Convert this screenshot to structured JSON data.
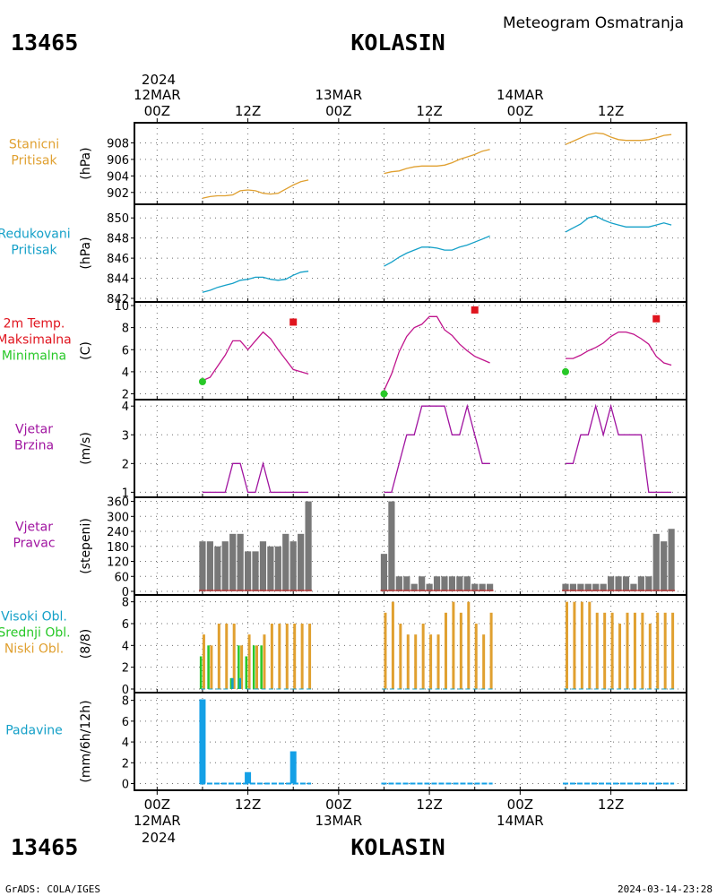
{
  "header": {
    "station_id": "13465",
    "station_name": "KOLASIN",
    "subtitle": "Meteogram Osmatranja"
  },
  "footer": {
    "left": "GrADS: COLA/IGES",
    "right": "2024-03-14-23:28"
  },
  "time_axis": {
    "top_year": "2024",
    "bottom_year": "2024",
    "labels": [
      {
        "h": 0,
        "text": "00Z",
        "date": "12MAR"
      },
      {
        "h": 12,
        "text": "12Z",
        "date": ""
      },
      {
        "h": 24,
        "text": "00Z",
        "date": "13MAR"
      },
      {
        "h": 36,
        "text": "12Z",
        "date": ""
      },
      {
        "h": 48,
        "text": "00Z",
        "date": "14MAR"
      },
      {
        "h": 60,
        "text": "12Z",
        "date": ""
      }
    ],
    "range_hours": [
      -3,
      70
    ]
  },
  "colors": {
    "orange": "#e0a030",
    "cyan": "#14a0c8",
    "magenta": "#c0148c",
    "red": "#e0141e",
    "green": "#28c828",
    "purple": "#a014a0",
    "gray": "#787878",
    "blue": "#14a0e6",
    "darkred": "#c83232"
  },
  "chart_data": [
    {
      "type": "line",
      "labels": [
        "Stanicni",
        "Pritisak"
      ],
      "unit": "(hPa)",
      "ylim": [
        901,
        910
      ],
      "yticks": [
        902,
        904,
        906,
        908
      ],
      "series": [
        {
          "color": "orange",
          "x": [
            6,
            7,
            8,
            9,
            10,
            11,
            12,
            13,
            14,
            15,
            16,
            17,
            18,
            19,
            20,
            30,
            31,
            32,
            33,
            34,
            35,
            36,
            37,
            38,
            39,
            40,
            41,
            42,
            43,
            44,
            54,
            55,
            56,
            57,
            58,
            59,
            60,
            61,
            62,
            63,
            64,
            65,
            66,
            67,
            68
          ],
          "y": [
            901.3,
            901.5,
            901.6,
            901.6,
            901.7,
            902.2,
            902.3,
            902.2,
            901.9,
            901.8,
            901.9,
            902.4,
            902.9,
            903.3,
            903.5,
            904.3,
            904.5,
            904.6,
            904.9,
            905.1,
            905.2,
            905.2,
            905.2,
            905.3,
            905.6,
            906.0,
            906.3,
            906.6,
            907.0,
            907.2,
            907.8,
            908.2,
            908.6,
            909.0,
            909.2,
            909.1,
            908.7,
            908.4,
            908.3,
            908.3,
            908.3,
            908.4,
            908.6,
            908.9,
            909.0
          ]
        }
      ]
    },
    {
      "type": "line",
      "labels": [
        "Redukovani",
        "Pritisak"
      ],
      "unit": "(hPa)",
      "ylim": [
        842,
        851
      ],
      "yticks": [
        842,
        844,
        846,
        848,
        850
      ],
      "series": [
        {
          "color": "cyan",
          "x": [
            6,
            7,
            8,
            9,
            10,
            11,
            12,
            13,
            14,
            15,
            16,
            17,
            18,
            19,
            20,
            30,
            31,
            32,
            33,
            34,
            35,
            36,
            37,
            38,
            39,
            40,
            41,
            42,
            43,
            44,
            54,
            55,
            56,
            57,
            58,
            59,
            60,
            61,
            62,
            63,
            64,
            65,
            66,
            67,
            68
          ],
          "y": [
            842.6,
            842.8,
            843.1,
            843.3,
            843.5,
            843.8,
            843.9,
            844.1,
            844.1,
            843.9,
            843.8,
            843.9,
            844.3,
            844.6,
            844.7,
            845.2,
            845.6,
            846.1,
            846.5,
            846.8,
            847.1,
            847.1,
            847.0,
            846.8,
            846.8,
            847.1,
            847.3,
            847.6,
            847.9,
            848.2,
            848.6,
            849.0,
            849.4,
            850.0,
            850.2,
            849.8,
            849.5,
            849.3,
            849.1,
            849.1,
            849.1,
            849.1,
            849.3,
            849.5,
            849.3
          ]
        }
      ]
    },
    {
      "type": "line",
      "labels": [
        "2m Temp.",
        "Maksimalna",
        "Minimalna"
      ],
      "label_colors": [
        "red",
        "red",
        "green"
      ],
      "unit": "(C)",
      "ylim": [
        1.8,
        10
      ],
      "yticks": [
        2,
        4,
        6,
        8,
        10
      ],
      "series": [
        {
          "color": "magenta",
          "x": [
            6,
            7,
            8,
            9,
            10,
            11,
            12,
            13,
            14,
            15,
            16,
            17,
            18,
            19,
            20,
            30,
            31,
            32,
            33,
            34,
            35,
            36,
            37,
            38,
            39,
            40,
            41,
            42,
            43,
            44,
            54,
            55,
            56,
            57,
            58,
            59,
            60,
            61,
            62,
            63,
            64,
            65,
            66,
            67,
            68
          ],
          "y": [
            3.2,
            3.5,
            4.5,
            5.5,
            6.8,
            6.8,
            6.0,
            6.8,
            7.6,
            7.0,
            6.0,
            5.1,
            4.2,
            4.0,
            3.8,
            2.3,
            3.8,
            5.8,
            7.2,
            8.0,
            8.3,
            9.0,
            9.0,
            7.8,
            7.3,
            6.5,
            5.9,
            5.4,
            5.1,
            4.8,
            5.2,
            5.2,
            5.5,
            5.9,
            6.2,
            6.6,
            7.2,
            7.6,
            7.6,
            7.4,
            7.0,
            6.5,
            5.4,
            4.8,
            4.6
          ]
        }
      ],
      "max_markers": [
        {
          "x": 18,
          "y": 8.5
        },
        {
          "x": 42,
          "y": 9.6
        },
        {
          "x": 66,
          "y": 8.8
        }
      ],
      "min_markers": [
        {
          "x": 6,
          "y": 3.1
        },
        {
          "x": 30,
          "y": 2.0
        },
        {
          "x": 54,
          "y": 4.0
        }
      ]
    },
    {
      "type": "line",
      "labels": [
        "Vjetar",
        "Brzina"
      ],
      "unit": "(m/s)",
      "ylim": [
        0.95,
        4.1
      ],
      "yticks": [
        1,
        2,
        3,
        4
      ],
      "series": [
        {
          "color": "purple",
          "x": [
            6,
            7,
            8,
            9,
            10,
            11,
            12,
            13,
            14,
            15,
            16,
            17,
            18,
            19,
            20,
            30,
            31,
            32,
            33,
            34,
            35,
            36,
            37,
            38,
            39,
            40,
            41,
            42,
            43,
            44,
            54,
            55,
            56,
            57,
            58,
            59,
            60,
            61,
            62,
            63,
            64,
            65,
            66,
            67,
            68
          ],
          "y": [
            1,
            1,
            1,
            1,
            2,
            2,
            1,
            1,
            2,
            1,
            1,
            1,
            1,
            1,
            1,
            1,
            1,
            2,
            3,
            3,
            4,
            4,
            4,
            4,
            3,
            3,
            4,
            3,
            2,
            2,
            2,
            2,
            3,
            3,
            4,
            3,
            4,
            3,
            3,
            3,
            3,
            1,
            1,
            1,
            1
          ]
        }
      ]
    },
    {
      "type": "bar",
      "labels": [
        "Vjetar",
        "Pravac"
      ],
      "unit": "(stepeni)",
      "ylim": [
        0,
        362
      ],
      "yticks": [
        0,
        60,
        120,
        180,
        240,
        300,
        360
      ],
      "bar_color": "gray",
      "base_line_color": "darkred",
      "x": [
        6,
        7,
        8,
        9,
        10,
        11,
        12,
        13,
        14,
        15,
        16,
        17,
        18,
        19,
        20,
        30,
        31,
        32,
        33,
        34,
        35,
        36,
        37,
        38,
        39,
        40,
        41,
        42,
        43,
        44,
        54,
        55,
        56,
        57,
        58,
        59,
        60,
        61,
        62,
        63,
        64,
        65,
        66,
        67,
        68
      ],
      "values": [
        200,
        200,
        180,
        200,
        230,
        230,
        160,
        160,
        200,
        180,
        180,
        230,
        200,
        230,
        360,
        150,
        360,
        60,
        60,
        30,
        60,
        30,
        60,
        60,
        60,
        60,
        60,
        30,
        30,
        30,
        30,
        30,
        30,
        30,
        30,
        30,
        60,
        60,
        60,
        30,
        60,
        60,
        230,
        200,
        250
      ]
    },
    {
      "type": "bar",
      "labels": [
        "Visoki Obl.",
        "Srednji Obl.",
        "Niski Obl."
      ],
      "label_colors": [
        "cyan",
        "green",
        "orange"
      ],
      "unit": "(8/8)",
      "ylim": [
        0,
        8.3
      ],
      "yticks": [
        0,
        2,
        4,
        6,
        8
      ],
      "x": [
        6,
        7,
        8,
        9,
        10,
        11,
        12,
        13,
        14,
        15,
        16,
        17,
        18,
        19,
        20,
        30,
        31,
        32,
        33,
        34,
        35,
        36,
        37,
        38,
        39,
        40,
        41,
        42,
        43,
        44,
        54,
        55,
        56,
        57,
        58,
        59,
        60,
        61,
        62,
        63,
        64,
        65,
        66,
        67,
        68
      ],
      "series": [
        {
          "name": "Niski Obl.",
          "color": "orange",
          "values": [
            5,
            4,
            6,
            6,
            6,
            4,
            5,
            4,
            5,
            6,
            6,
            6,
            6,
            6,
            6,
            7,
            8,
            6,
            5,
            5,
            6,
            5,
            5,
            7,
            8,
            7,
            8,
            6,
            5,
            7,
            8,
            8,
            8,
            8,
            7,
            7,
            7,
            6,
            7,
            7,
            7,
            6,
            7,
            7,
            7
          ]
        },
        {
          "name": "Srednji Obl.",
          "color": "green",
          "values": [
            3,
            4,
            0,
            0,
            1,
            4,
            3,
            4,
            4,
            0,
            0,
            0,
            0,
            0,
            0,
            0,
            0,
            0,
            0,
            0,
            0,
            0,
            0,
            0,
            0,
            0,
            0,
            0,
            0,
            0,
            0,
            0,
            0,
            0,
            0,
            0,
            0,
            0,
            0,
            0,
            0,
            0,
            0,
            0,
            0
          ]
        },
        {
          "name": "Visoki Obl.",
          "color": "cyan",
          "values": [
            0,
            0,
            0,
            0,
            1,
            1,
            0,
            0,
            0,
            0,
            0,
            0,
            0,
            0,
            0,
            0,
            0,
            0,
            0,
            0,
            0,
            0,
            0,
            0,
            0,
            0,
            0,
            0,
            0,
            0,
            0,
            0,
            0,
            0,
            0,
            0,
            0,
            0,
            0,
            0,
            0,
            0,
            0,
            0,
            0
          ]
        }
      ]
    },
    {
      "type": "bar",
      "labels": [
        "Padavine"
      ],
      "label_colors": [
        "cyan"
      ],
      "unit": "(mm/6h/12h)",
      "ylim": [
        -0.3,
        8.4
      ],
      "yticks": [
        0,
        2,
        4,
        6,
        8
      ],
      "bar_color": "blue",
      "x": [
        6,
        12,
        18
      ],
      "values": [
        8.1,
        1.1,
        3.1
      ],
      "trace_segments": [
        [
          6,
          20
        ],
        [
          30,
          44
        ],
        [
          54,
          68
        ]
      ]
    }
  ]
}
